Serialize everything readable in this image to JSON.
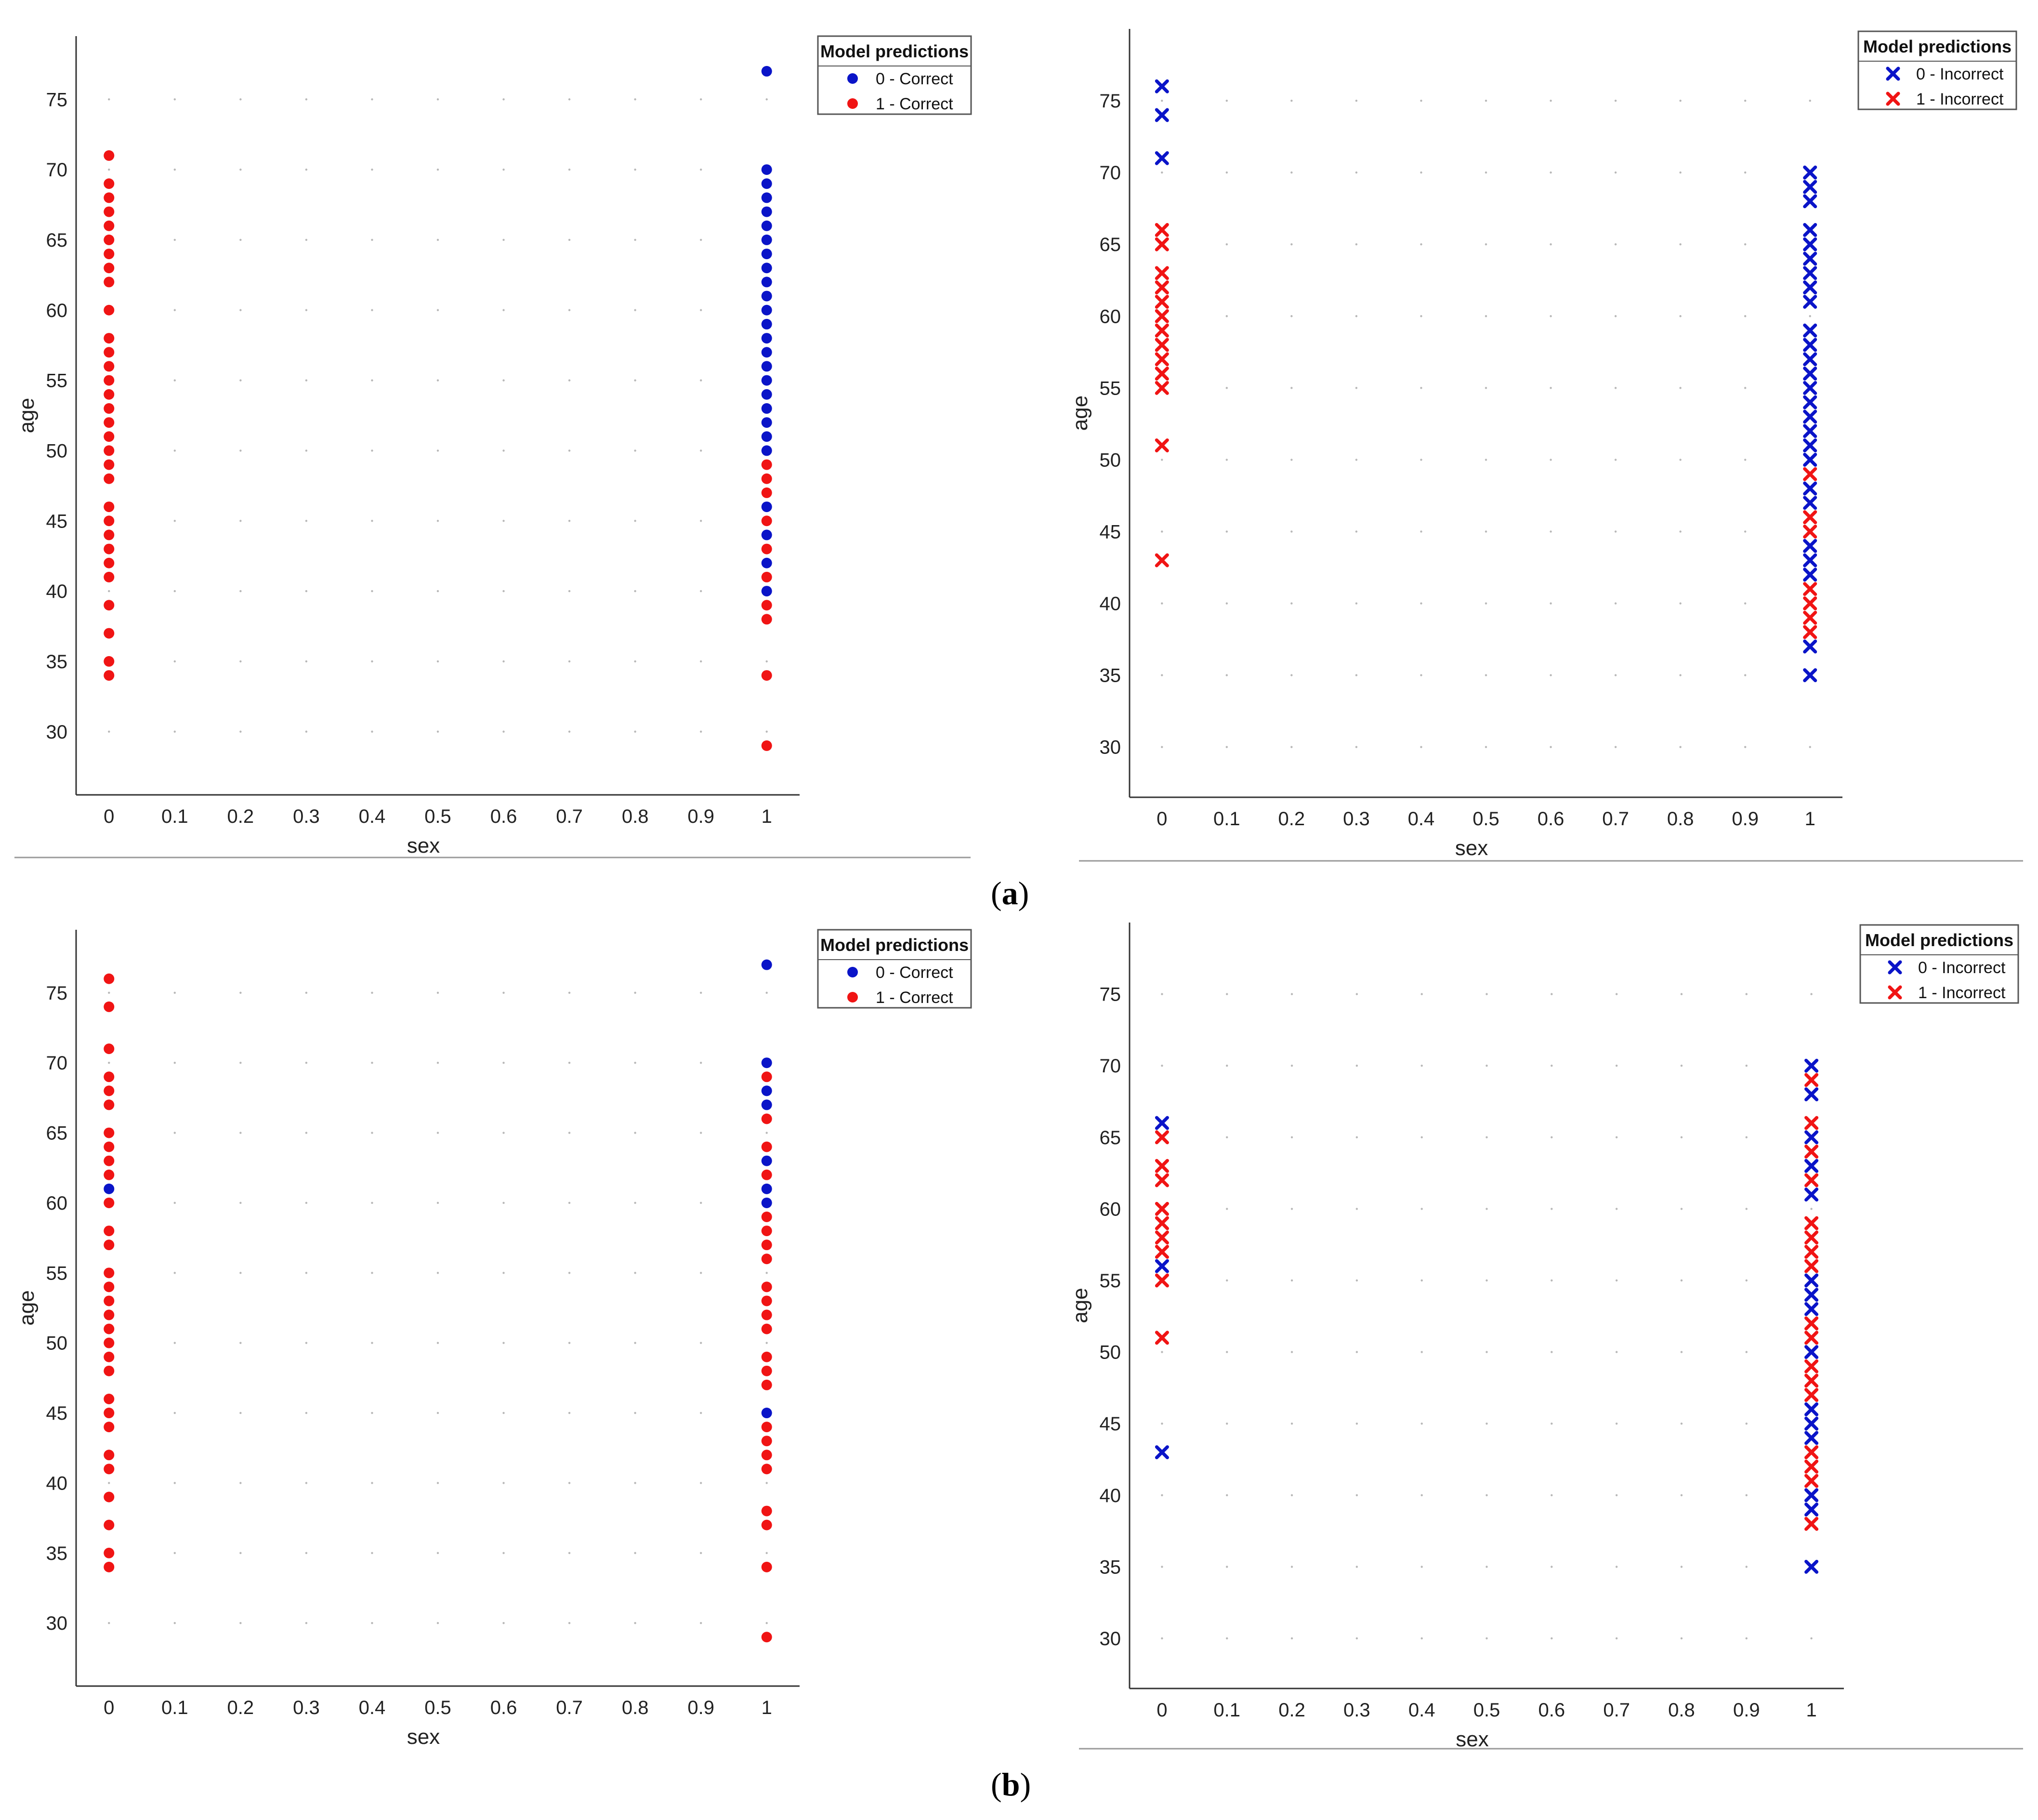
{
  "figure": {
    "caption_a": "a",
    "caption_b": "b"
  },
  "chart_data": [
    {
      "id": "a-correct",
      "type": "scatter",
      "marker": "circle",
      "xlabel": "sex",
      "ylabel": "age",
      "xlim": [
        -0.05,
        1.05
      ],
      "ylim": [
        25.5,
        79.5
      ],
      "xticks": [
        "0",
        "0.1",
        "0.2",
        "0.3",
        "0.4",
        "0.5",
        "0.6",
        "0.7",
        "0.8",
        "0.9",
        "1"
      ],
      "yticks": [
        "30",
        "35",
        "40",
        "45",
        "50",
        "55",
        "60",
        "65",
        "70",
        "75"
      ],
      "legend": {
        "title": "Model predictions",
        "entries": [
          "0 - Correct",
          "1 - Correct"
        ]
      },
      "series": [
        {
          "name": "0 - Correct",
          "color": "#0a14c8",
          "x": 1,
          "y": [
            77,
            70,
            69,
            68,
            67,
            66,
            65,
            64,
            63,
            62,
            61,
            60,
            59,
            58,
            57,
            56,
            55,
            54,
            53,
            52,
            51,
            50,
            46,
            44,
            42,
            40
          ]
        },
        {
          "name": "1 - Correct (sex 0)",
          "color": "#f01414",
          "x": 0,
          "y": [
            71,
            69,
            68,
            67,
            66,
            65,
            64,
            63,
            62,
            60,
            58,
            57,
            56,
            55,
            54,
            53,
            52,
            51,
            50,
            49,
            48,
            46,
            45,
            44,
            43,
            42,
            41,
            39,
            37,
            35,
            34
          ]
        },
        {
          "name": "1 - Correct (sex 1)",
          "color": "#f01414",
          "x": 1,
          "y": [
            49,
            48,
            47,
            45,
            43,
            41,
            39,
            38,
            34,
            29
          ]
        }
      ]
    },
    {
      "id": "a-incorrect",
      "type": "scatter",
      "marker": "x",
      "xlabel": "sex",
      "ylabel": "age",
      "xlim": [
        -0.05,
        1.05
      ],
      "ylim": [
        26.5,
        80.0
      ],
      "xticks": [
        "0",
        "0.1",
        "0.2",
        "0.3",
        "0.4",
        "0.5",
        "0.6",
        "0.7",
        "0.8",
        "0.9",
        "1"
      ],
      "yticks": [
        "30",
        "35",
        "40",
        "45",
        "50",
        "55",
        "60",
        "65",
        "70",
        "75"
      ],
      "legend": {
        "title": "Model predictions",
        "entries": [
          "0 - Incorrect",
          "1 - Incorrect"
        ]
      },
      "series": [
        {
          "name": "0 - Incorrect (sex 0)",
          "color": "#0a14c8",
          "x": 0,
          "y": [
            76,
            74,
            71
          ]
        },
        {
          "name": "0 - Incorrect (sex 1)",
          "color": "#0a14c8",
          "x": 1,
          "y": [
            70,
            69,
            68,
            66,
            65,
            64,
            63,
            62,
            61,
            59,
            58,
            57,
            56,
            55,
            54,
            53,
            52,
            51,
            50,
            48,
            47,
            44,
            43,
            42,
            37,
            35
          ]
        },
        {
          "name": "1 - Incorrect (sex 0)",
          "color": "#f01414",
          "x": 0,
          "y": [
            66,
            65,
            63,
            62,
            61,
            60,
            59,
            58,
            57,
            56,
            55,
            51,
            43
          ]
        },
        {
          "name": "1 - Incorrect (sex 1)",
          "color": "#f01414",
          "x": 1,
          "y": [
            49,
            46,
            45,
            41,
            40,
            39,
            38
          ]
        }
      ]
    },
    {
      "id": "b-correct",
      "type": "scatter",
      "marker": "circle",
      "xlabel": "sex",
      "ylabel": "age",
      "xlim": [
        -0.05,
        1.05
      ],
      "ylim": [
        25.5,
        79.5
      ],
      "xticks": [
        "0",
        "0.1",
        "0.2",
        "0.3",
        "0.4",
        "0.5",
        "0.6",
        "0.7",
        "0.8",
        "0.9",
        "1"
      ],
      "yticks": [
        "30",
        "35",
        "40",
        "45",
        "50",
        "55",
        "60",
        "65",
        "70",
        "75"
      ],
      "legend": {
        "title": "Model predictions",
        "entries": [
          "0 - Correct",
          "1 - Correct"
        ]
      },
      "series": [
        {
          "name": "0 - Correct (sex 0)",
          "color": "#0a14c8",
          "x": 0,
          "y": [
            61
          ]
        },
        {
          "name": "0 - Correct (sex 1)",
          "color": "#0a14c8",
          "x": 1,
          "y": [
            77,
            70,
            68,
            67,
            63,
            61,
            60,
            45
          ]
        },
        {
          "name": "1 - Correct (sex 0)",
          "color": "#f01414",
          "x": 0,
          "y": [
            76,
            74,
            71,
            69,
            68,
            67,
            65,
            64,
            63,
            62,
            60,
            58,
            57,
            55,
            54,
            53,
            52,
            51,
            50,
            49,
            48,
            46,
            45,
            44,
            42,
            41,
            39,
            37,
            35,
            34
          ]
        },
        {
          "name": "1 - Correct (sex 1)",
          "color": "#f01414",
          "x": 1,
          "y": [
            69,
            66,
            64,
            62,
            59,
            58,
            57,
            56,
            54,
            53,
            52,
            51,
            49,
            48,
            47,
            44,
            43,
            42,
            41,
            38,
            37,
            34,
            29
          ]
        }
      ]
    },
    {
      "id": "b-incorrect",
      "type": "scatter",
      "marker": "x",
      "xlabel": "sex",
      "ylabel": "age",
      "xlim": [
        -0.05,
        1.05
      ],
      "ylim": [
        26.5,
        80.0
      ],
      "xticks": [
        "0",
        "0.1",
        "0.2",
        "0.3",
        "0.4",
        "0.5",
        "0.6",
        "0.7",
        "0.8",
        "0.9",
        "1"
      ],
      "yticks": [
        "30",
        "35",
        "40",
        "45",
        "50",
        "55",
        "60",
        "65",
        "70",
        "75"
      ],
      "legend": {
        "title": "Model predictions",
        "entries": [
          "0 - Incorrect",
          "1 - Incorrect"
        ]
      },
      "series": [
        {
          "name": "0 - Incorrect (sex 0)",
          "color": "#0a14c8",
          "x": 0,
          "y": [
            66,
            56,
            43
          ]
        },
        {
          "name": "0 - Incorrect (sex 1)",
          "color": "#0a14c8",
          "x": 1,
          "y": [
            70,
            68,
            65,
            63,
            61,
            55,
            54,
            53,
            50,
            46,
            45,
            44,
            40,
            39,
            35
          ]
        },
        {
          "name": "1 - Incorrect (sex 0)",
          "color": "#f01414",
          "x": 0,
          "y": [
            65,
            63,
            62,
            60,
            59,
            58,
            57,
            55,
            51
          ]
        },
        {
          "name": "1 - Incorrect (sex 1)",
          "color": "#f01414",
          "x": 1,
          "y": [
            69,
            66,
            64,
            62,
            59,
            58,
            57,
            56,
            52,
            51,
            49,
            48,
            47,
            43,
            42,
            41,
            38
          ]
        }
      ]
    }
  ]
}
